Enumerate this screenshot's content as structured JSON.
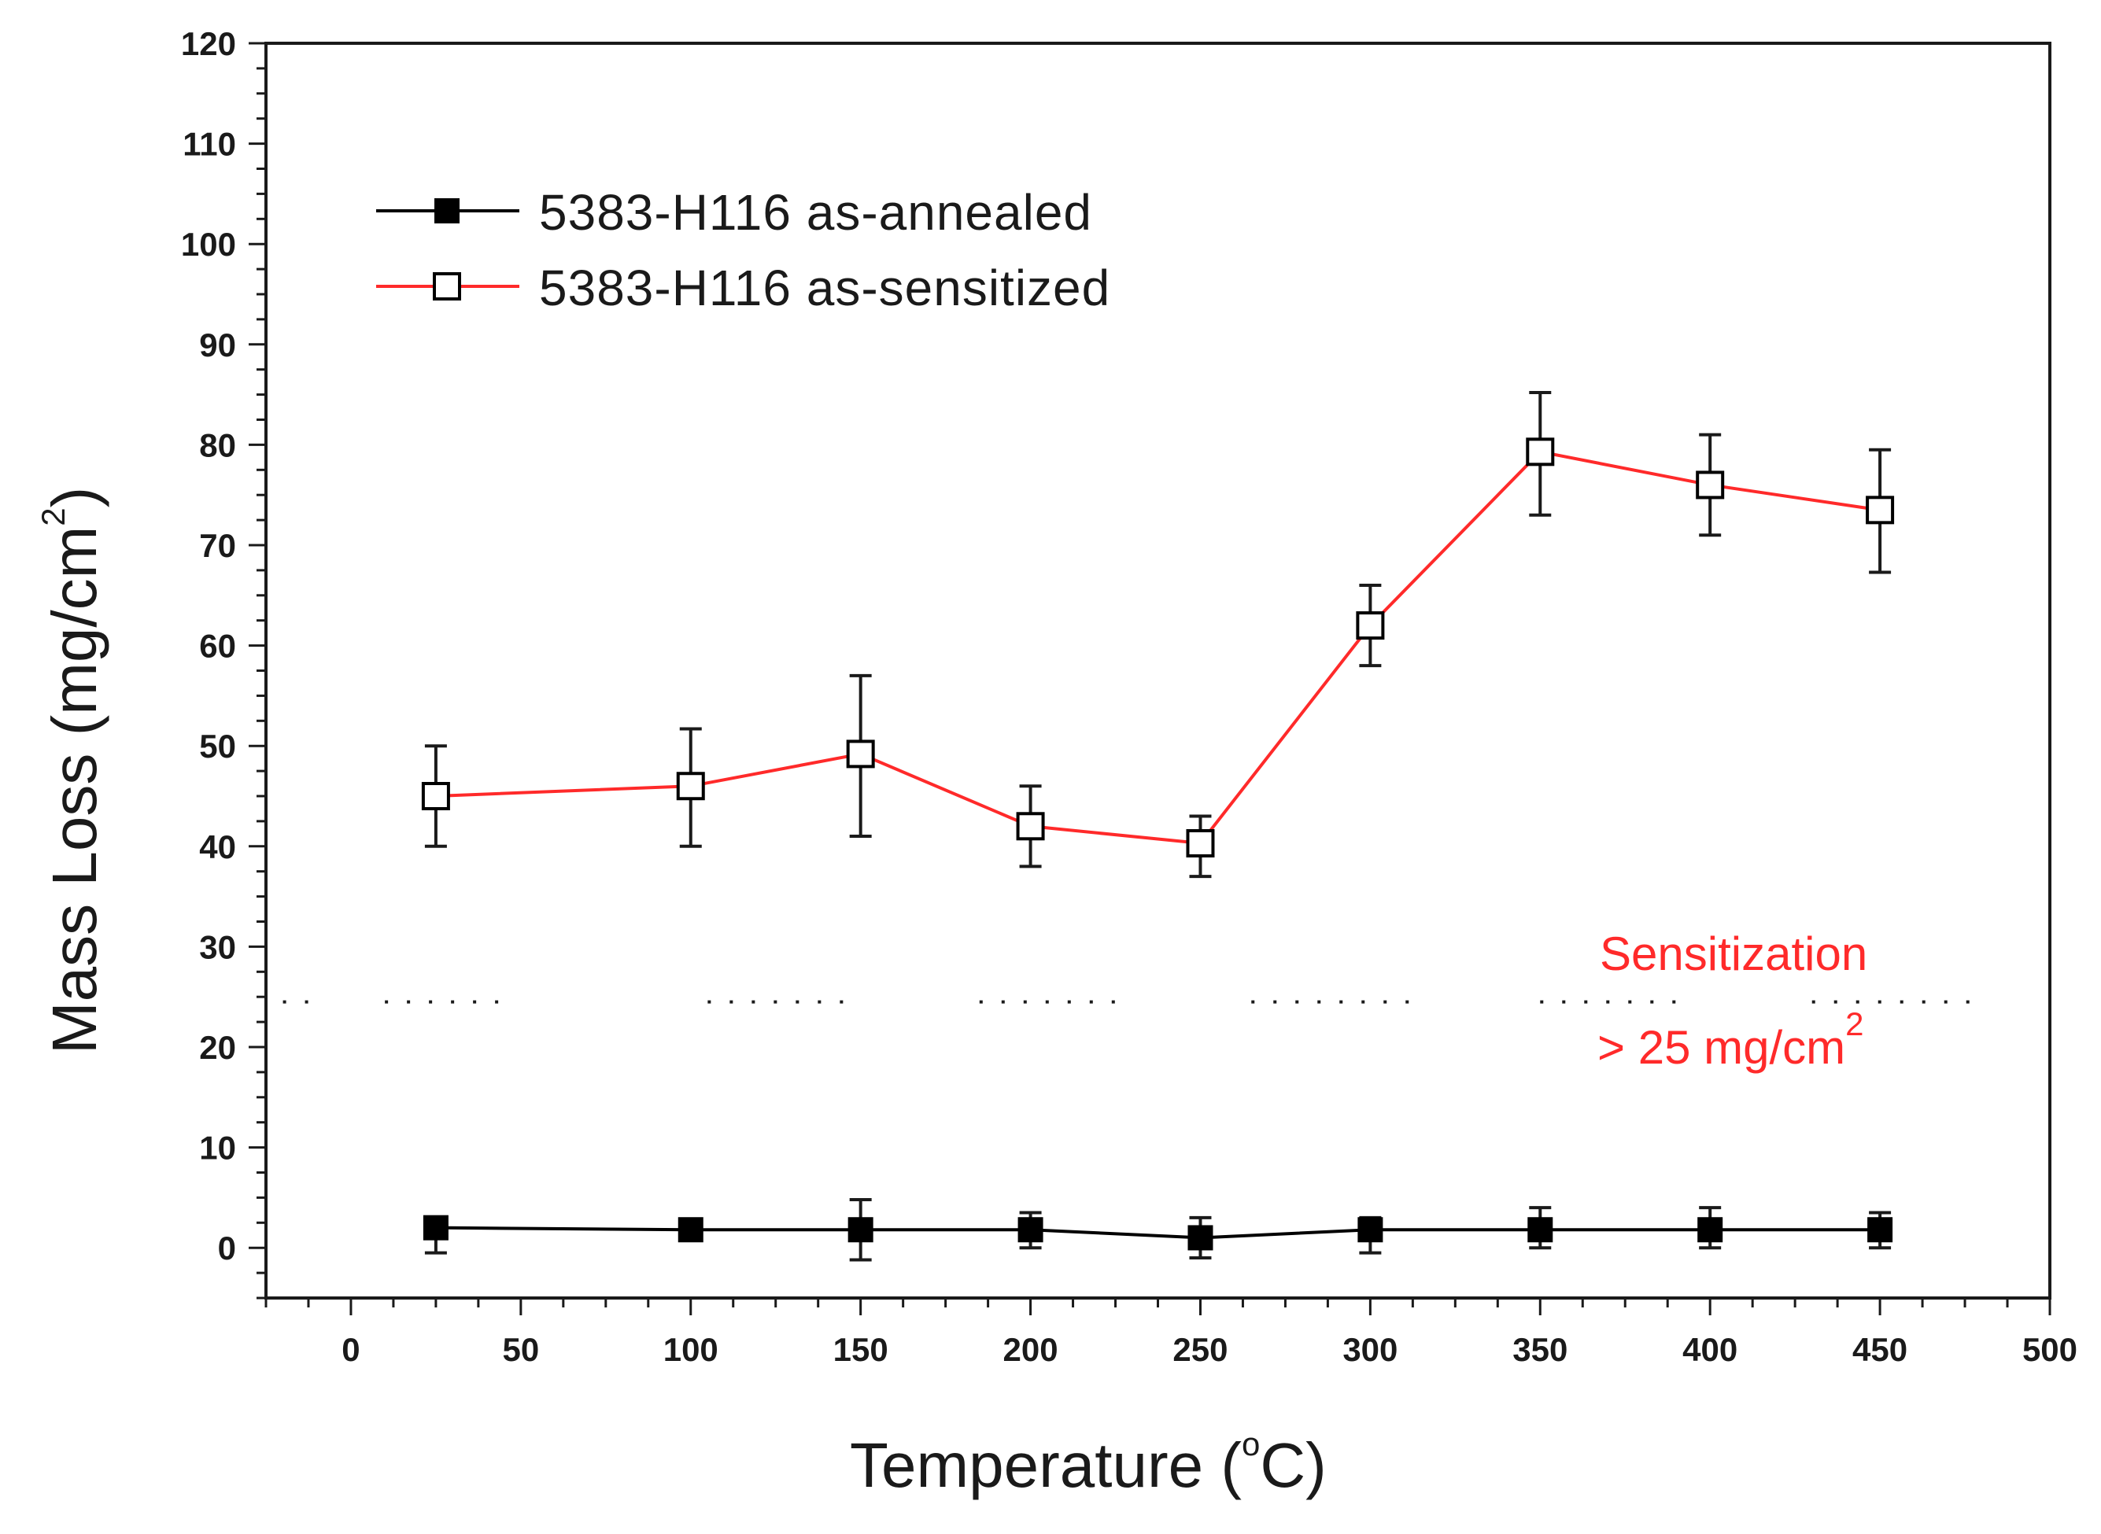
{
  "chart_data": {
    "type": "line",
    "title": "",
    "xlabel": {
      "main": "Temperature (",
      "sup": "o",
      "tail": "C)"
    },
    "ylabel": {
      "main": "Mass Loss (mg/cm",
      "sup": "2",
      "tail": ")"
    },
    "xlim": [
      -25,
      500
    ],
    "ylim": [
      -5,
      120
    ],
    "xticks": [
      0,
      50,
      100,
      150,
      200,
      250,
      300,
      350,
      400,
      450,
      500
    ],
    "yticks": [
      0,
      10,
      20,
      30,
      40,
      50,
      60,
      70,
      80,
      90,
      100,
      110,
      120
    ],
    "x": [
      25,
      100,
      150,
      200,
      250,
      300,
      350,
      400,
      450
    ],
    "series": [
      {
        "name": "5383-H116 as-annealed",
        "color": "#000000",
        "marker": "filled-square",
        "values": [
          2.0,
          1.8,
          1.8,
          1.8,
          1.0,
          1.8,
          1.8,
          1.8,
          1.8
        ],
        "error_low": [
          -0.5,
          1.5,
          -1.2,
          0.0,
          -1.0,
          -0.5,
          0.0,
          0.0,
          0.0
        ],
        "error_high": [
          2.5,
          2.0,
          4.8,
          3.5,
          3.0,
          3.0,
          4.0,
          4.0,
          3.5
        ]
      },
      {
        "name": "5383-H116 as-sensitized",
        "color": "#ff2a2a",
        "marker": "open-square",
        "values": [
          45.0,
          46.0,
          49.2,
          42.0,
          40.3,
          62.0,
          79.3,
          76.0,
          73.5
        ],
        "error_low": [
          40.0,
          40.0,
          41.0,
          38.0,
          37.0,
          58.0,
          73.0,
          71.0,
          67.3
        ],
        "error_high": [
          50.0,
          51.7,
          57.0,
          46.0,
          43.0,
          66.0,
          85.2,
          81.0,
          79.5
        ]
      }
    ],
    "threshold": {
      "y": 24.5,
      "style": "dotted",
      "color": "#1a1a1a"
    },
    "annotation": {
      "line1": "Sensitization",
      "line2_main": "> 25 mg/cm",
      "line2_sup": "2",
      "color": "#ff2a2a"
    },
    "legend_position": "top-left",
    "grid": false
  }
}
